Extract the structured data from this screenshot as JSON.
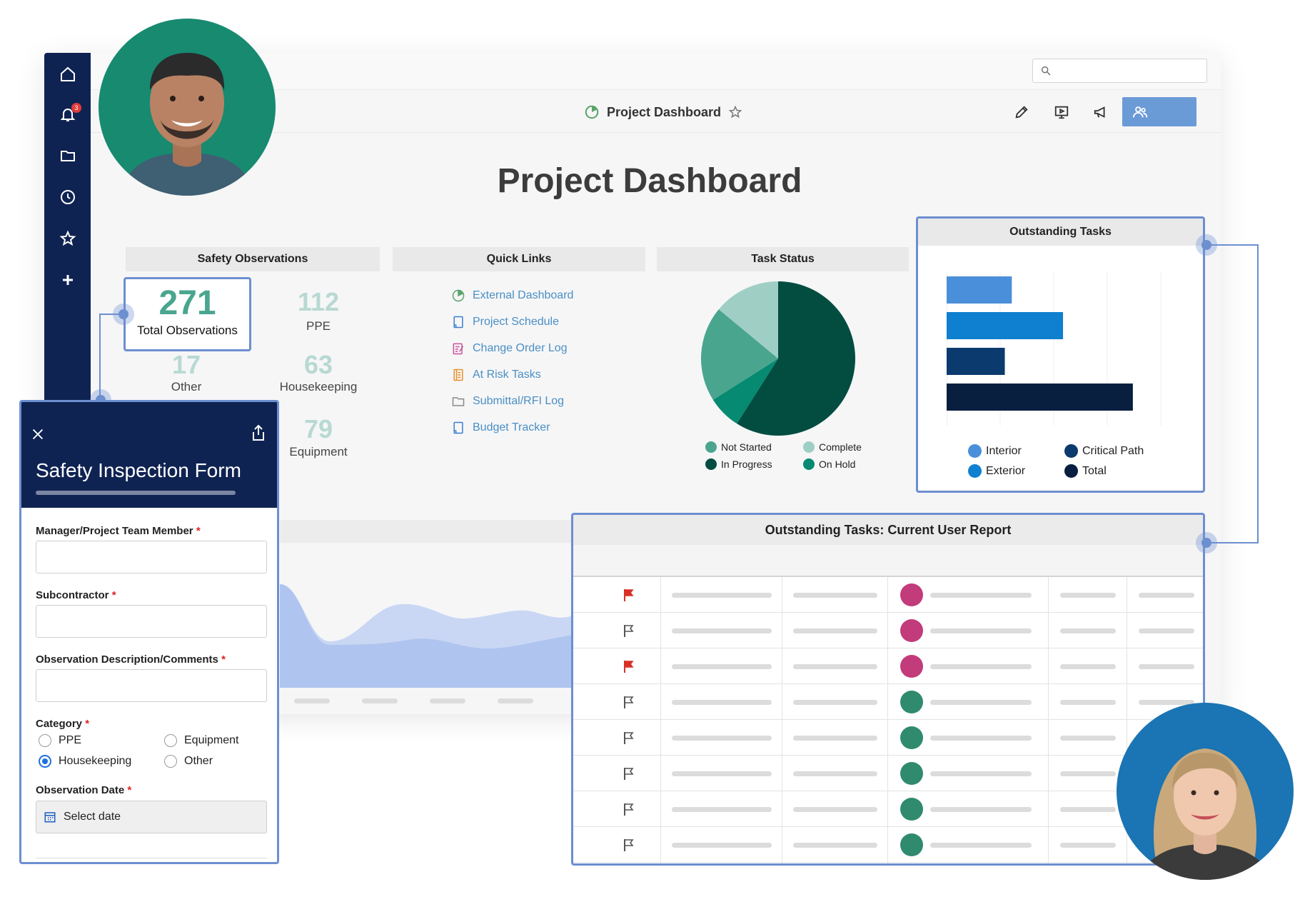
{
  "sidebar": {
    "notification_count": "3",
    "items": [
      "home-icon",
      "bell-icon",
      "folder-icon",
      "clock-icon",
      "star-icon",
      "plus-icon"
    ]
  },
  "header": {
    "title": "Project Dashboard",
    "tools": [
      "pencil-icon",
      "present-icon",
      "megaphone-icon",
      "users-icon"
    ]
  },
  "page": {
    "title": "Project Dashboard"
  },
  "safety": {
    "title": "Safety Observations",
    "total": {
      "value": "271",
      "label": "Total Observations"
    },
    "stats": [
      {
        "value": "112",
        "label": "PPE"
      },
      {
        "value": "17",
        "label": "Other"
      },
      {
        "value": "63",
        "label": "Housekeeping"
      },
      {
        "value": "79",
        "label": "Equipment"
      }
    ]
  },
  "quick_links": {
    "title": "Quick Links",
    "items": [
      {
        "label": "External Dashboard",
        "icon": "dashboard-icon"
      },
      {
        "label": "Project Schedule",
        "icon": "sheet-icon"
      },
      {
        "label": "Change Order Log",
        "icon": "form-icon"
      },
      {
        "label": "At Risk Tasks",
        "icon": "report-icon"
      },
      {
        "label": "Submittal/RFI Log",
        "icon": "folder-icon"
      },
      {
        "label": "Budget Tracker",
        "icon": "sheet-icon"
      }
    ]
  },
  "task_status": {
    "title": "Task Status",
    "legend": [
      {
        "label": "Not Started",
        "color": "#4aa58f"
      },
      {
        "label": "Complete",
        "color": "#9fcfc4"
      },
      {
        "label": "In Progress",
        "color": "#024d40"
      },
      {
        "label": "On Hold",
        "color": "#068a72"
      }
    ]
  },
  "outstanding": {
    "title": "Outstanding Tasks",
    "legend": [
      {
        "label": "Interior",
        "color": "#4a8fd9"
      },
      {
        "label": "Critical Path",
        "color": "#0b3a6e"
      },
      {
        "label": "Exterior",
        "color": "#0f7fcf"
      },
      {
        "label": "Total",
        "color": "#081f3f"
      }
    ]
  },
  "chart_data": [
    {
      "type": "pie",
      "title": "Task Status",
      "categories": [
        "In Progress",
        "On Hold",
        "Not Started",
        "Complete"
      ],
      "values": [
        59,
        7,
        20,
        14
      ],
      "colors": [
        "#024d40",
        "#068a72",
        "#4aa58f",
        "#9fcfc4"
      ]
    },
    {
      "type": "bar",
      "orientation": "horizontal",
      "title": "Outstanding Tasks",
      "categories": [
        "Interior",
        "Exterior",
        "Critical Path",
        "Total"
      ],
      "values": [
        28,
        50,
        25,
        80
      ],
      "colors": [
        "#4a8fd9",
        "#0f7fcf",
        "#0b3a6e",
        "#081f3f"
      ],
      "xlim": [
        0,
        92
      ]
    }
  ],
  "report": {
    "title": "Outstanding Tasks: Current User Report",
    "rows": [
      {
        "flag": "red"
      },
      {
        "flag": "grey"
      },
      {
        "flag": "red"
      },
      {
        "flag": "grey"
      },
      {
        "flag": "grey"
      },
      {
        "flag": "grey"
      },
      {
        "flag": "grey"
      },
      {
        "flag": "grey"
      }
    ]
  },
  "form": {
    "title": "Safety Inspection Form",
    "fields": {
      "manager": "Manager/Project Team Member",
      "subcontractor": "Subcontractor",
      "description": "Observation Description/Comments",
      "category": "Category",
      "date": "Observation Date"
    },
    "required_mark": "*",
    "category_options": [
      {
        "label": "PPE",
        "checked": false
      },
      {
        "label": "Equipment",
        "checked": false
      },
      {
        "label": "Housekeeping",
        "checked": true
      },
      {
        "label": "Other",
        "checked": false
      }
    ],
    "date_placeholder": "Select date"
  },
  "colors": {
    "accent": "#6c8fd0",
    "navy": "#0f2352",
    "teal": "#4aa58f"
  }
}
